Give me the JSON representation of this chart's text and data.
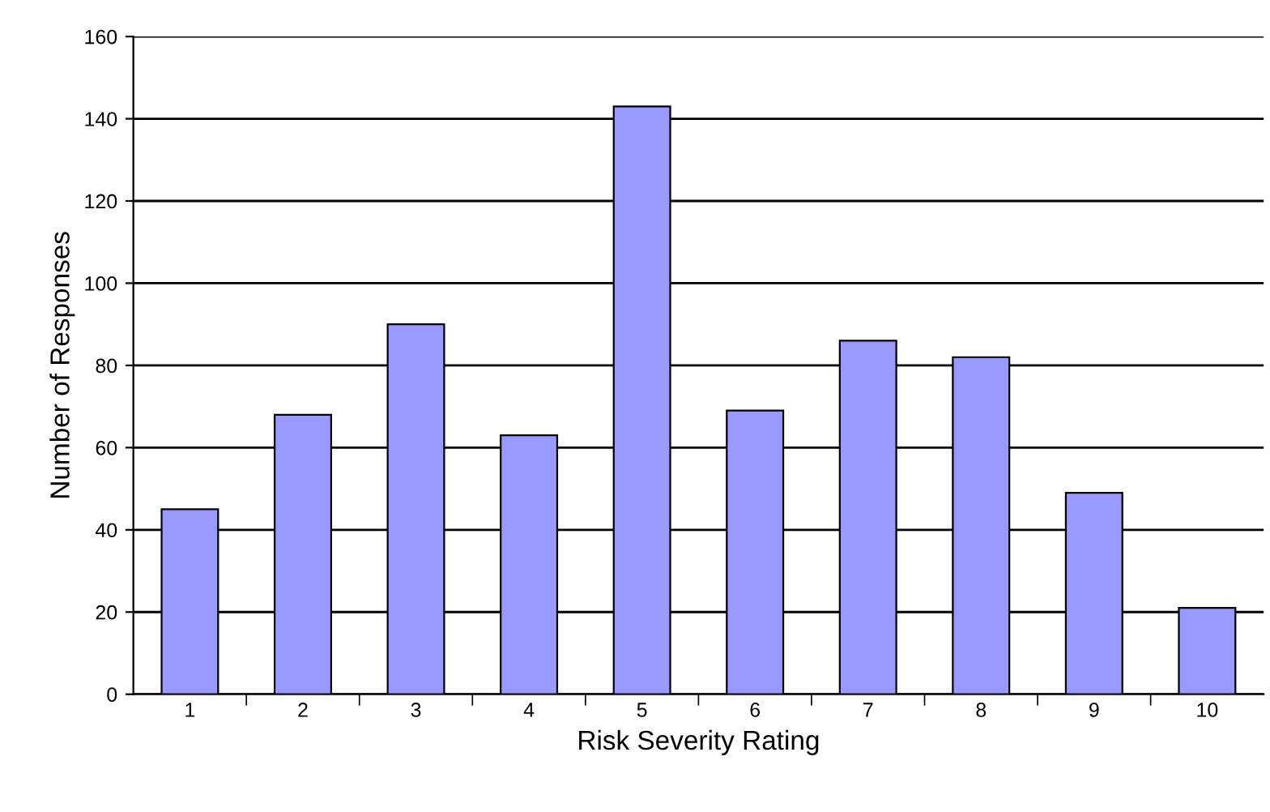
{
  "chart_data": {
    "type": "bar",
    "xlabel": "Risk Severity Rating",
    "ylabel": "Number of Responses",
    "categories": [
      "1",
      "2",
      "3",
      "4",
      "5",
      "6",
      "7",
      "8",
      "9",
      "10"
    ],
    "values": [
      45,
      68,
      90,
      63,
      143,
      69,
      86,
      82,
      49,
      21
    ],
    "color": "#9999ff",
    "ylim": [
      0,
      160
    ],
    "yticks": [
      0,
      20,
      40,
      60,
      80,
      100,
      120,
      140,
      160
    ],
    "grid": "y",
    "legend": false
  }
}
